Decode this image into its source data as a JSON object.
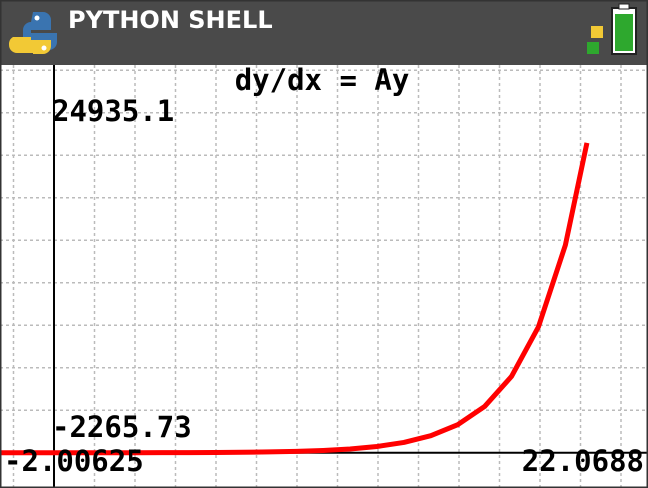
{
  "header": {
    "title": "PYTHON SHELL"
  },
  "chart_data": {
    "type": "line",
    "title": "dy/dx = Ay",
    "x": [
      -2,
      -1,
      0,
      1,
      2,
      3,
      4,
      5,
      6,
      7,
      8,
      9,
      10,
      11,
      12,
      13,
      14,
      15,
      16,
      17,
      18,
      19,
      19.8
    ],
    "series": [
      {
        "color": "#ff0000",
        "values": [
          0.37,
          0.61,
          1,
          1.65,
          2.72,
          4.48,
          7.39,
          12.18,
          20.09,
          33.12,
          54.6,
          90.02,
          148.4,
          244.7,
          403.4,
          665.1,
          1096.6,
          1808,
          2981,
          4915,
          8103,
          13360,
          19930
        ]
      }
    ],
    "xlim": [
      -2.00625,
      22.0688
    ],
    "ylim": [
      -2265.73,
      24935.1
    ],
    "grid": true
  }
}
